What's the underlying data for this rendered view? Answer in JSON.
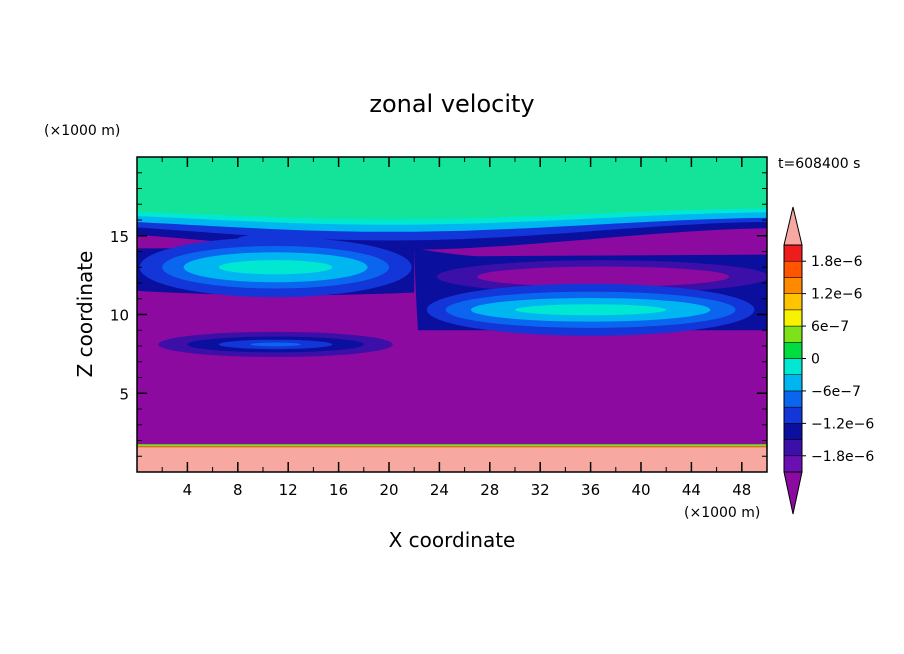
{
  "chart_data": {
    "type": "heatmap",
    "title": "zonal velocity",
    "xlabel": "X coordinate",
    "ylabel": "Z coordinate",
    "x_unit_label": "(×1000 m)",
    "y_unit_label": "(×1000 m)",
    "time_label": "t=608400 s",
    "xlim": [
      0,
      50
    ],
    "ylim": [
      0,
      20
    ],
    "x_ticks": [
      4,
      8,
      12,
      16,
      20,
      24,
      28,
      32,
      36,
      40,
      44,
      48
    ],
    "y_ticks": [
      5,
      10,
      15
    ],
    "colorbar": {
      "labels": [
        {
          "value": 1.8e-06,
          "text": "1.8e−6"
        },
        {
          "value": 1.2e-06,
          "text": "1.2e−6"
        },
        {
          "value": 6e-07,
          "text": "6e−7"
        },
        {
          "value": 0,
          "text": "0"
        },
        {
          "value": -6e-07,
          "text": "−6e−7"
        },
        {
          "value": -1.2e-06,
          "text": "−1.2e−6"
        },
        {
          "value": -1.8e-06,
          "text": "−1.8e−6"
        }
      ],
      "range": [
        -2.1e-06,
        2.1e-06
      ],
      "levels": [
        {
          "lo": -2.1e-06,
          "hi": -1.8e-06,
          "color": "#6a0fb2"
        },
        {
          "lo": -1.8e-06,
          "hi": -1.5e-06,
          "color": "#3b0fa8"
        },
        {
          "lo": -1.5e-06,
          "hi": -1.2e-06,
          "color": "#0b0f9e"
        },
        {
          "lo": -1.2e-06,
          "hi": -9e-07,
          "color": "#1236d8"
        },
        {
          "lo": -9e-07,
          "hi": -6e-07,
          "color": "#0a66ef"
        },
        {
          "lo": -6e-07,
          "hi": -3e-07,
          "color": "#00b6f0"
        },
        {
          "lo": -3e-07,
          "hi": 0,
          "color": "#00e8d2"
        },
        {
          "lo": 0,
          "hi": 3e-07,
          "color": "#00dd40"
        },
        {
          "lo": 3e-07,
          "hi": 6e-07,
          "color": "#7ee21a"
        },
        {
          "lo": 6e-07,
          "hi": 9e-07,
          "color": "#f6f200"
        },
        {
          "lo": 9e-07,
          "hi": 1.2e-06,
          "color": "#ffc400"
        },
        {
          "lo": 1.2e-06,
          "hi": 1.5e-06,
          "color": "#ff8a00"
        },
        {
          "lo": 1.5e-06,
          "hi": 1.8e-06,
          "color": "#ff5500"
        },
        {
          "lo": 1.8e-06,
          "hi": 2.1e-06,
          "color": "#ee1d1d"
        }
      ],
      "under_color": "#8c0aa0",
      "over_color": "#f7a8a0"
    },
    "field_colors": {
      "background": "#8c0aa0",
      "surface_layer": "#13e49a",
      "ground_layer": "#f7a8a0",
      "jet_outer": "#0b0f9e",
      "jet_mid": "#1236d8",
      "jet_inner": "#0a66ef",
      "jet_core": "#00b6f0",
      "jet_peak": "#00e8d2",
      "jet_deep": "#3b0fa8"
    },
    "regions": [
      {
        "name": "upper-green-layer",
        "x": [
          0,
          50
        ],
        "z_bottom": 16.2,
        "z_top": 20
      },
      {
        "name": "left-upper-jet",
        "x_center": 11,
        "z_center": 13,
        "x_halfwidth": 11,
        "z_halfwidth": 2.6
      },
      {
        "name": "right-upper-band",
        "x_center": 37,
        "z_center": 12.4,
        "x_halfwidth": 13,
        "z_halfwidth": 1.5
      },
      {
        "name": "right-middle-jet",
        "x_center": 36,
        "z_center": 10.3,
        "x_halfwidth": 13,
        "z_halfwidth": 2.0
      },
      {
        "name": "left-lower-jet",
        "x_center": 11,
        "z_center": 8.1,
        "x_halfwidth": 9,
        "z_halfwidth": 0.75
      },
      {
        "name": "ground-layer",
        "x": [
          0,
          50
        ],
        "z_bottom": 0,
        "z_top": 1.6
      }
    ]
  }
}
